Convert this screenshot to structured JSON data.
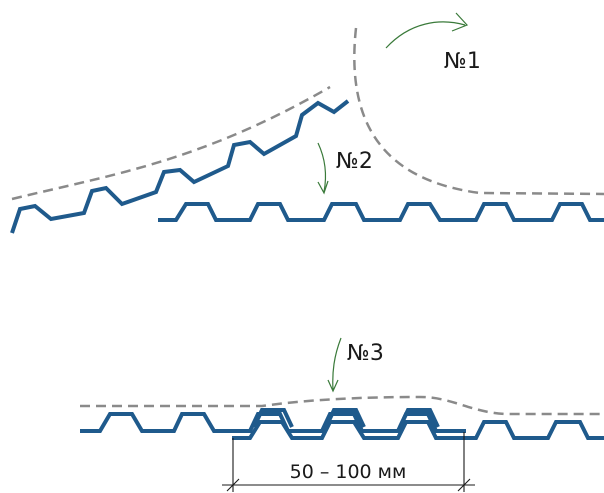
{
  "labels": {
    "step1": "№1",
    "step2": "№2",
    "step3": "№3"
  },
  "dimension": {
    "text": "50 – 100 мм"
  },
  "colors": {
    "sheet": "#1f5a8c",
    "guide": "#8a8a8a",
    "arrow": "#3a7a3a",
    "text": "#1a1a1a"
  }
}
